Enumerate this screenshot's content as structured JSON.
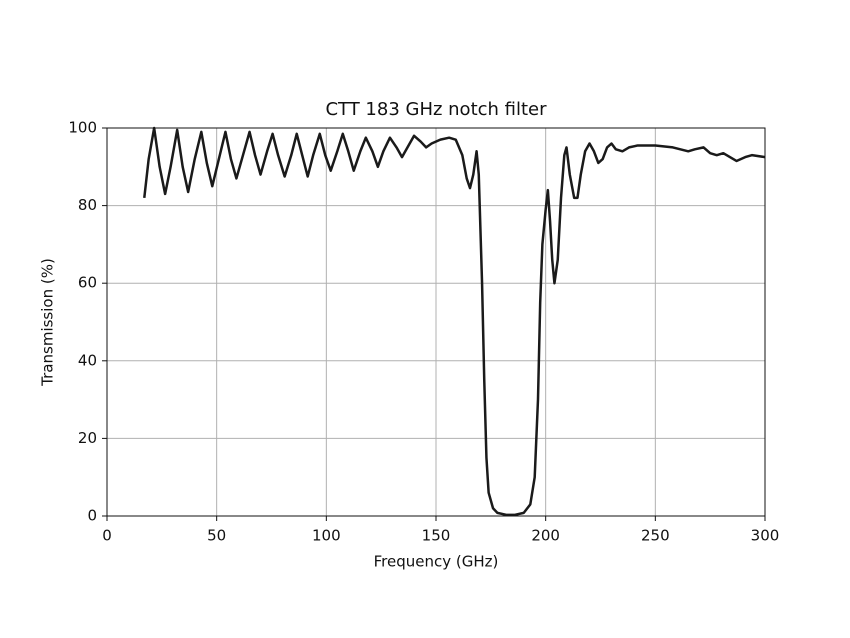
{
  "chart_data": {
    "type": "line",
    "title": "CTT 183 GHz notch filter",
    "x_label": "Frequency (GHz)",
    "y_label": "Transmission (%)",
    "x": [
      17,
      19,
      21.5,
      24,
      26.5,
      29,
      32,
      34.5,
      37,
      40,
      43,
      45.5,
      48,
      51,
      54,
      56.5,
      59,
      62,
      65,
      67.5,
      70,
      73,
      75.5,
      78,
      81,
      84,
      86.5,
      89,
      91.5,
      94,
      97,
      99.5,
      102,
      105,
      107.5,
      110,
      112.5,
      115.5,
      118,
      121,
      123.5,
      126,
      129,
      132,
      134.5,
      137,
      140,
      143,
      145.5,
      148,
      152,
      156,
      159,
      162,
      164,
      165.5,
      167,
      168.5,
      169.5,
      171,
      172,
      173,
      174,
      176,
      178,
      182,
      186,
      190,
      193,
      195,
      196.5,
      197.5,
      198.5,
      200,
      201,
      202,
      203,
      204,
      205.5,
      207,
      208.5,
      209.5,
      211,
      213,
      214.5,
      216,
      218,
      220,
      222,
      224,
      226,
      228,
      230,
      232,
      235,
      238,
      242,
      250,
      258,
      265,
      268,
      272,
      275,
      278,
      281,
      284,
      287,
      291,
      294,
      300
    ],
    "series": [
      {
        "name": "Transmission",
        "color": "#1a1a1a",
        "values": [
          82,
          92,
          100,
          90,
          83,
          90,
          99.5,
          90,
          83.5,
          92,
          99,
          91,
          85,
          92,
          99,
          92,
          87,
          93,
          99,
          93,
          88,
          94,
          98.5,
          93,
          87.5,
          93,
          98.5,
          93,
          87.5,
          93,
          98.5,
          93,
          89,
          94,
          98.5,
          94,
          89,
          94,
          97.5,
          94,
          90,
          94,
          97.5,
          95,
          92.5,
          95,
          98,
          96.5,
          95,
          96,
          97,
          97.5,
          97,
          93,
          87,
          84.5,
          88,
          94,
          88,
          60,
          35,
          15,
          6,
          2,
          0.8,
          0.3,
          0.3,
          0.8,
          3,
          10,
          30,
          55,
          70,
          79,
          84,
          76,
          66,
          60,
          66,
          82,
          93,
          95,
          88,
          82,
          82,
          88,
          94,
          96,
          94,
          91,
          92,
          95,
          96,
          94.5,
          94,
          95,
          95.5,
          95.5,
          95,
          94,
          94.5,
          95,
          93.5,
          93,
          93.5,
          92.5,
          91.5,
          92.5,
          93,
          92.5
        ]
      }
    ],
    "xlim": [
      0,
      300
    ],
    "ylim": [
      0,
      100
    ],
    "xticks": [
      0,
      50,
      100,
      150,
      200,
      250,
      300
    ],
    "yticks": [
      0,
      20,
      40,
      60,
      80,
      100
    ],
    "grid": true
  }
}
